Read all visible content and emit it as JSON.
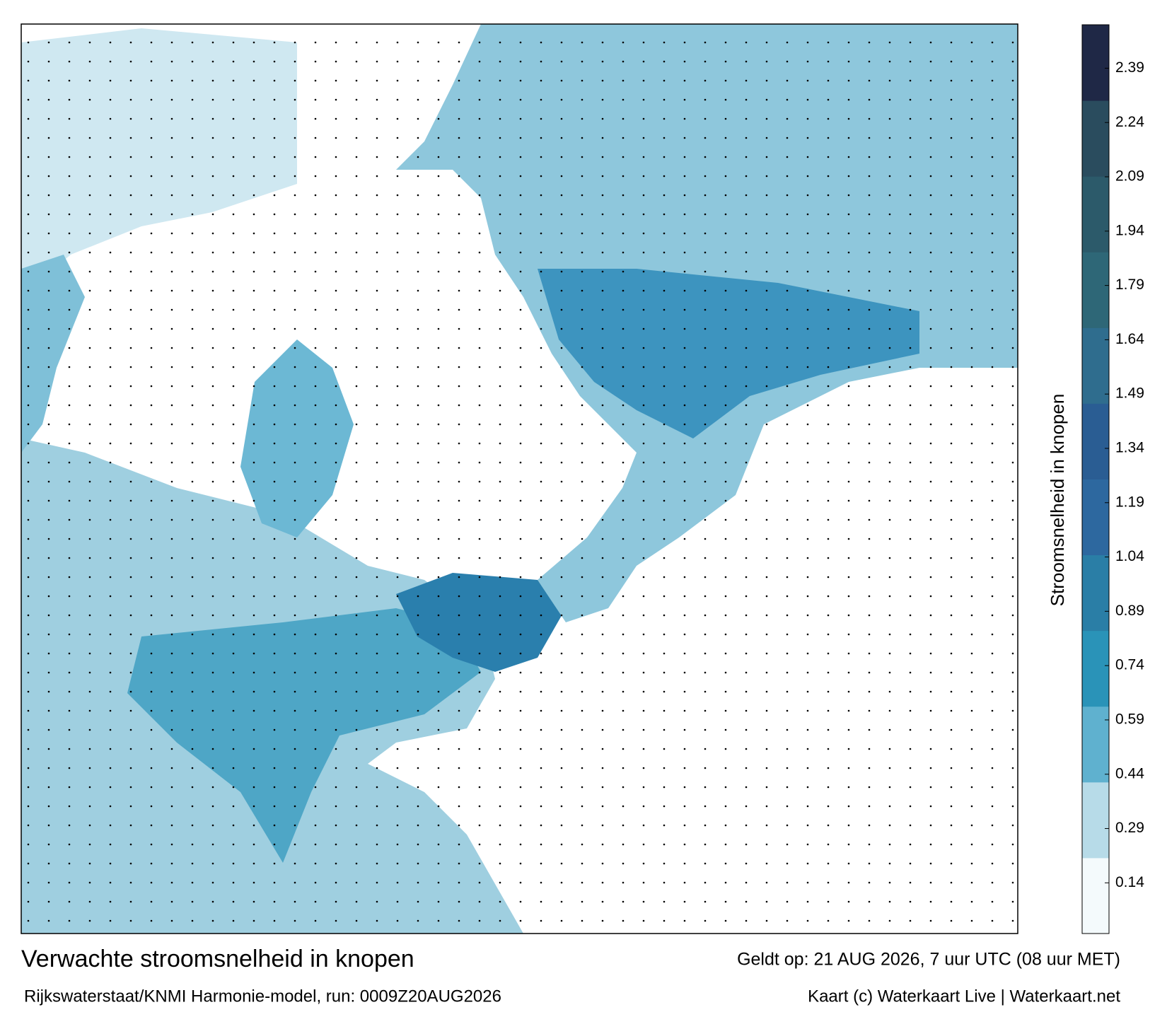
{
  "map": {
    "title": "Verwachte stroomsnelheid in knopen",
    "subtitle": "Rijkswaterstaat/KNMI Harmonie-model, run: 0009Z20AUG2026",
    "valid": "Geldt op: 21 AUG 2026, 7 uur UTC (08 uur MET)",
    "credit": "Kaart (c) Waterkaart Live | Waterkaart.net",
    "colorbar": {
      "label": "Stroomsnelheid in knopen",
      "lim": [
        0,
        2.51
      ],
      "ticks": [
        0.14,
        0.29,
        0.44,
        0.59,
        0.74,
        0.89,
        1.04,
        1.19,
        1.34,
        1.49,
        1.64,
        1.79,
        1.94,
        2.09,
        2.24,
        2.39
      ],
      "colors": [
        "#f4fafc",
        "#b7dbe8",
        "#5fb1cf",
        "#2a93b8",
        "#2a7ea6",
        "#2d689f",
        "#2a5d93",
        "#2f6d8e",
        "#2e6777",
        "#2c5a6a",
        "#2a4c5e",
        "#1f2846"
      ]
    }
  }
}
